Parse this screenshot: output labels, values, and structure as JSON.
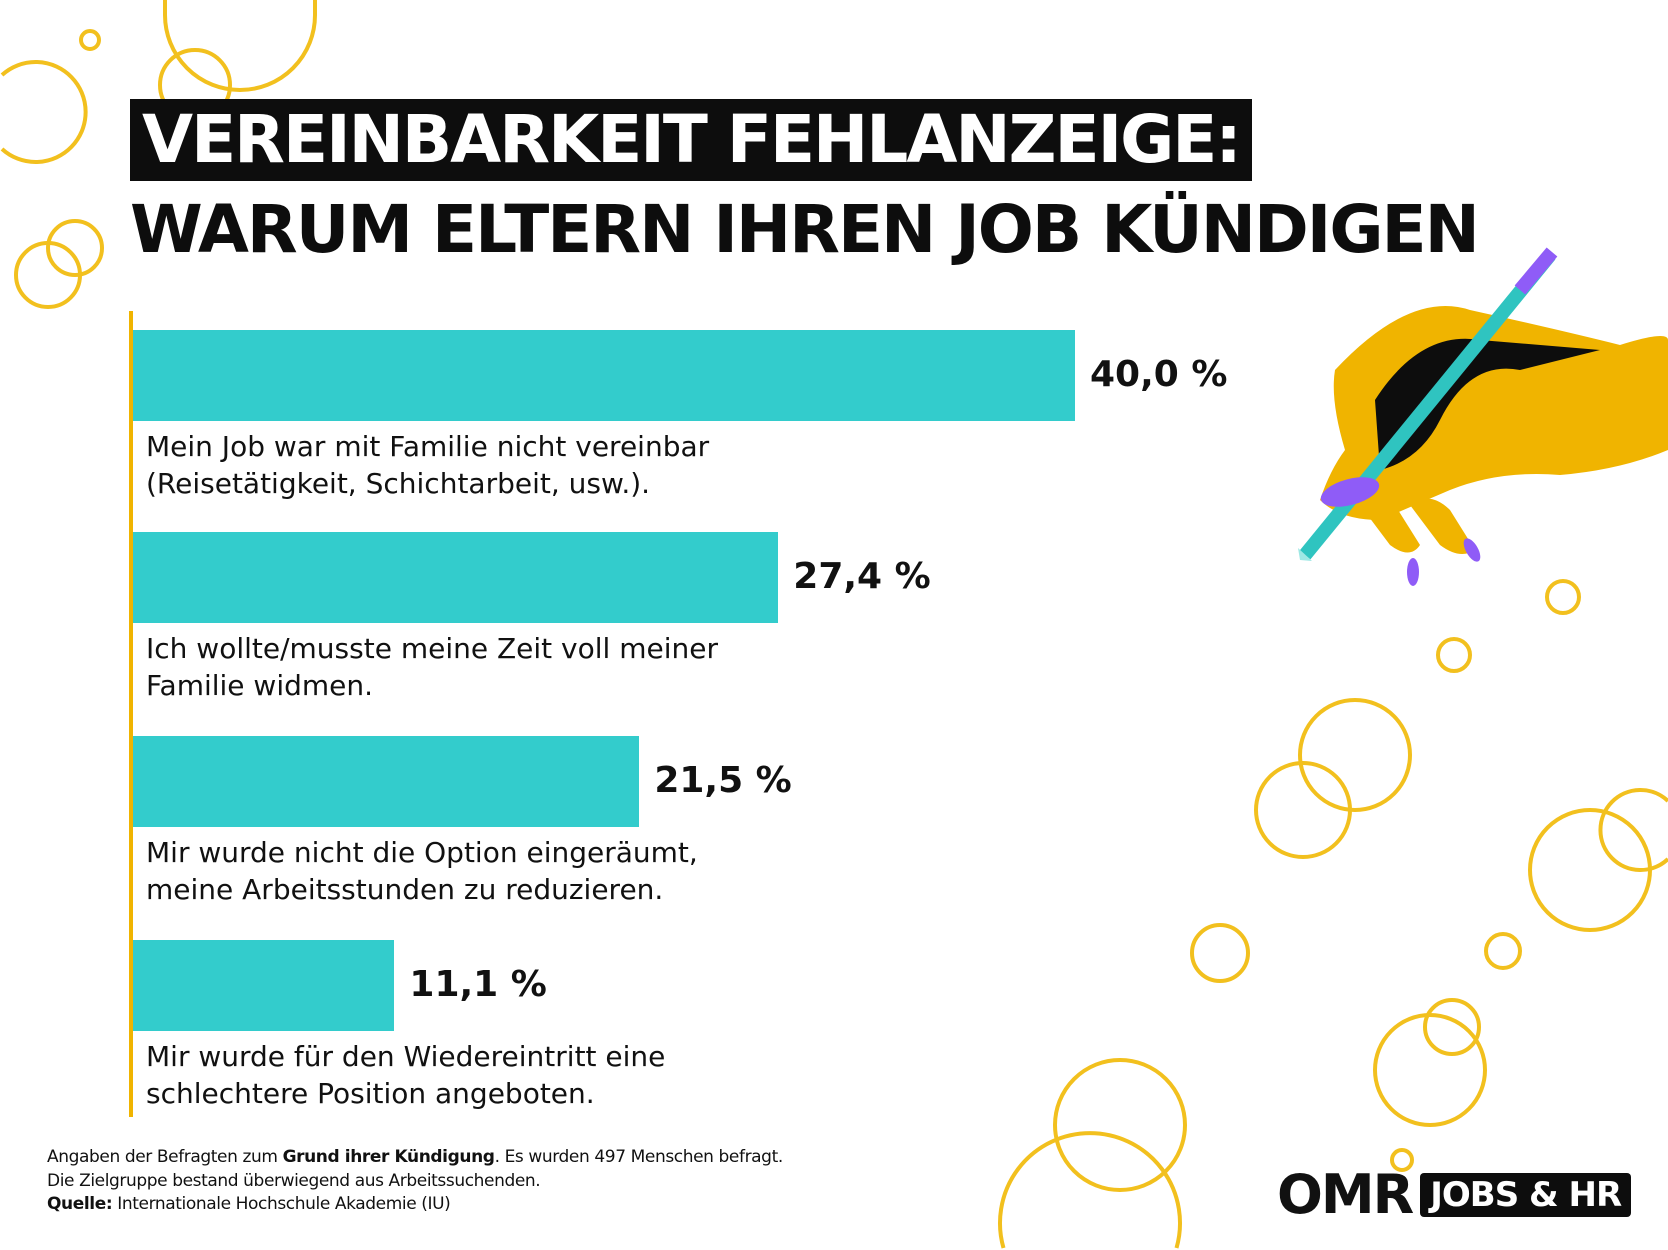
{
  "title_line1": "VEREINBARKEIT FEHLANZEIGE:",
  "title_line2": "WARUM ELTERN IHREN JOB KÜNDIGEN",
  "colors": {
    "bar": "#33cccc",
    "accent": "#f0b400",
    "title_bg": "#0d0d0d"
  },
  "chart_data": {
    "type": "bar",
    "orientation": "horizontal",
    "categories": [
      "Mein Job war mit Familie nicht vereinbar (Reisetätigkeit, Schichtarbeit, usw.).",
      "Ich wollte/musste meine Zeit voll meiner Familie widmen.",
      "Mir wurde nicht die Option eingeräumt, meine Arbeitsstunden zu reduzieren.",
      "Mir wurde für den Wiedereintritt eine schlechtere Position angeboten."
    ],
    "category_lines": [
      [
        "Mein Job war mit Familie nicht vereinbar",
        "(Reisetätigkeit, Schichtarbeit, usw.)."
      ],
      [
        "Ich wollte/musste meine Zeit voll meiner",
        "Familie widmen."
      ],
      [
        "Mir wurde nicht die Option eingeräumt,",
        "meine Arbeitsstunden zu reduzieren."
      ],
      [
        "Mir wurde für den Wiedereintritt eine",
        "schlechtere Position angeboten."
      ]
    ],
    "values": [
      40.0,
      27.4,
      21.5,
      11.1
    ],
    "value_labels": [
      "40,0 %",
      "27,4 %",
      "21,5 %",
      "11,1 %"
    ],
    "unit": "%",
    "grid": false
  },
  "footer": {
    "line1_a": "Angaben der Befragten zum ",
    "line1_bold": "Grund ihrer Kündigung",
    "line1_b": ". Es wurden 497 Menschen befragt.",
    "line2": "Die Zielgruppe bestand überwiegend aus Arbeitssuchenden.",
    "line3_bold": "Quelle:",
    "line3": " Internationale Hochschule Akademie (IU)"
  },
  "logo": {
    "brand": "OMR",
    "badge": "JOBS & HR"
  }
}
